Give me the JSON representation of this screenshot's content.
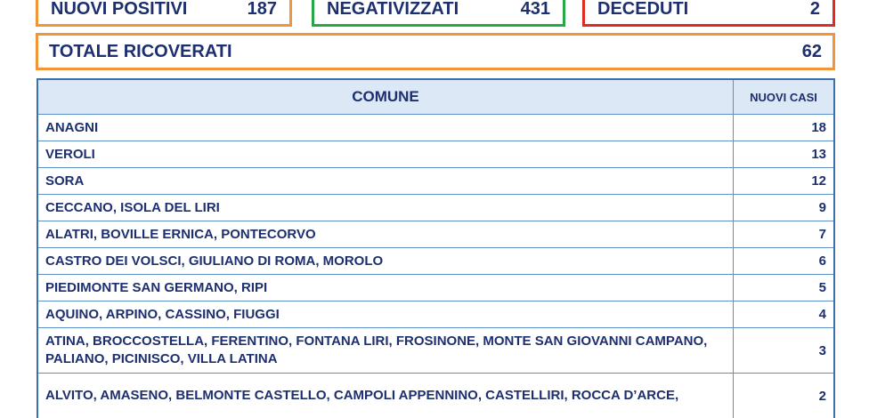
{
  "summary": {
    "nuovi_positivi": {
      "label": "NUOVI POSITIVI",
      "value": "187"
    },
    "negativizzati": {
      "label": "NEGATIVIZZATI",
      "value": "431"
    },
    "deceduti": {
      "label": "DECEDUTI",
      "value": "2"
    },
    "totale_ricoverati": {
      "label": "TOTALE RICOVERATI",
      "value": "62"
    }
  },
  "colors": {
    "text": "#1d2f6f",
    "orange_border": "#f0953a",
    "green_border": "#28a745",
    "red_border": "#e02b24",
    "table_border": "#3a6fb0",
    "header_bg": "#dce8f6"
  },
  "table": {
    "headers": {
      "comune": "COMUNE",
      "nuovi_casi": "NUOVI CASI"
    },
    "rows": [
      {
        "comune": "ANAGNI",
        "casi": "18"
      },
      {
        "comune": "VEROLI",
        "casi": "13"
      },
      {
        "comune": "SORA",
        "casi": "12"
      },
      {
        "comune": "CECCANO, ISOLA DEL LIRI",
        "casi": "9"
      },
      {
        "comune": "ALATRI, BOVILLE ERNICA, PONTECORVO",
        "casi": "7"
      },
      {
        "comune": "CASTRO DEI VOLSCI, GIULIANO DI ROMA, MOROLO",
        "casi": "6"
      },
      {
        "comune": "PIEDIMONTE SAN GERMANO, RIPI",
        "casi": "5"
      },
      {
        "comune": "AQUINO, ARPINO, CASSINO, FIUGGI",
        "casi": "4"
      },
      {
        "comune": "ATINA, BROCCOSTELLA, FERENTINO, FONTANA LIRI, FROSINONE, MONTE SAN GIOVANNI CAMPANO, PALIANO, PICINISCO, VILLA LATINA",
        "casi": "3"
      },
      {
        "comune": "ALVITO, AMASENO, BELMONTE CASTELLO, CAMPOLI APPENNINO, CASTELLIRI, ROCCA D’ARCE,",
        "casi": "2"
      }
    ]
  }
}
